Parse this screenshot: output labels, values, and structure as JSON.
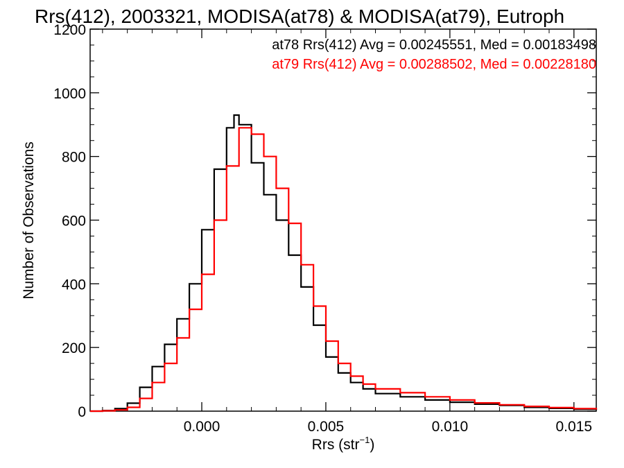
{
  "chart_data": {
    "type": "histogram",
    "title": "Rrs(412), 2003321, MODISA(at78) & MODISA(at79), Eutroph",
    "xlabel": "Rrs (str",
    "xlabel_sup": "−1",
    "xlabel_close": ")",
    "ylabel": "Number of Observations",
    "xlim": [
      -0.0045,
      0.0159
    ],
    "ylim": [
      0,
      1200
    ],
    "xticks": [
      0.0,
      0.005,
      0.01,
      0.015
    ],
    "xtick_labels": [
      "0.000",
      "0.005",
      "0.010",
      "0.015"
    ],
    "yticks": [
      0,
      200,
      400,
      600,
      800,
      1000,
      1200
    ],
    "ytick_labels": [
      "0",
      "200",
      "400",
      "600",
      "800",
      "1000",
      "1200"
    ],
    "series": [
      {
        "name": "at78",
        "color": "#000000",
        "stats_label": "at78 Rrs(412) Avg = 0.00245551, Med = 0.00183498",
        "x": [
          -0.0045,
          -0.004,
          -0.0035,
          -0.003,
          -0.0025,
          -0.002,
          -0.0015,
          -0.001,
          -0.0005,
          0.0,
          0.0005,
          0.001,
          0.0013,
          0.0015,
          0.002,
          0.0025,
          0.003,
          0.0035,
          0.004,
          0.0045,
          0.005,
          0.0055,
          0.006,
          0.0065,
          0.007,
          0.008,
          0.009,
          0.01,
          0.011,
          0.012,
          0.013,
          0.014,
          0.015,
          0.0159
        ],
        "y": [
          0,
          2,
          8,
          25,
          75,
          140,
          210,
          290,
          400,
          570,
          760,
          890,
          930,
          900,
          780,
          680,
          600,
          490,
          390,
          270,
          170,
          120,
          90,
          70,
          55,
          45,
          35,
          28,
          22,
          18,
          12,
          9,
          6,
          4
        ]
      },
      {
        "name": "at79",
        "color": "#ff0000",
        "stats_label": "at79 Rrs(412) Avg = 0.00288502, Med = 0.00228180",
        "x": [
          -0.0045,
          -0.004,
          -0.0035,
          -0.003,
          -0.0025,
          -0.002,
          -0.0015,
          -0.001,
          -0.0005,
          0.0,
          0.0005,
          0.001,
          0.0015,
          0.002,
          0.0025,
          0.003,
          0.0035,
          0.004,
          0.0045,
          0.005,
          0.0055,
          0.006,
          0.0065,
          0.007,
          0.008,
          0.009,
          0.01,
          0.011,
          0.012,
          0.013,
          0.014,
          0.015,
          0.0159
        ],
        "y": [
          0,
          1,
          4,
          12,
          40,
          90,
          150,
          230,
          320,
          430,
          600,
          770,
          890,
          870,
          800,
          700,
          590,
          460,
          330,
          220,
          150,
          110,
          85,
          70,
          58,
          45,
          35,
          26,
          20,
          15,
          11,
          8,
          5
        ]
      }
    ],
    "grid": false,
    "legend": "top-right"
  }
}
